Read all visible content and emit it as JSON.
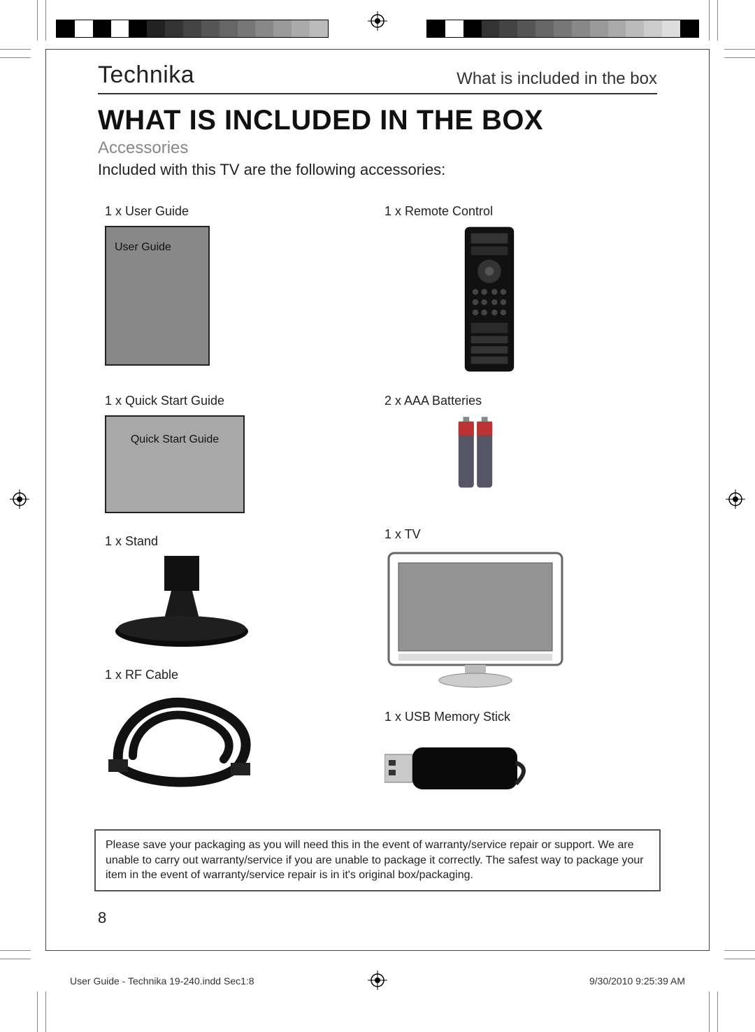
{
  "meta": {
    "brand": "Technika",
    "header_right": "What is included in the box",
    "title": "WHAT IS INCLUDED IN THE BOX",
    "subtitle": "Accessories",
    "intro": "Included with this TV are the following accessories:",
    "page_number": "8",
    "footer_file": "User Guide - Technika 19-240.indd   Sec1:8",
    "footer_timestamp": "9/30/2010   9:25:39 AM"
  },
  "items_left": [
    {
      "label": "1 x User Guide",
      "kind": "user_guide",
      "caption": "User Guide"
    },
    {
      "label": "1 x Quick Start Guide",
      "kind": "qsg",
      "caption": "Quick Start Guide"
    },
    {
      "label": "1 x Stand",
      "kind": "stand"
    },
    {
      "label": "1 x RF Cable",
      "kind": "cable"
    }
  ],
  "items_right": [
    {
      "label": "1 x Remote Control",
      "kind": "remote"
    },
    {
      "label": "2 x AAA Batteries",
      "kind": "batteries"
    },
    {
      "label": "1 x TV",
      "kind": "tv"
    },
    {
      "label": "1 x USB Memory Stick",
      "kind": "usb"
    }
  ],
  "notice": "Please save your packaging as you will need this in the event of warranty/service repair or support. We are unable to carry out warranty/service if you are unable to package it correctly. The safest way to package your item in the event of warranty/service repair is in it's original box/packaging.",
  "colors": {
    "page_bg": "#ffffff",
    "text": "#1a1a1a",
    "muted": "#888888",
    "rule": "#333333",
    "frame": "#444444",
    "booklet_fill": "#888888",
    "qsg_fill": "#a8a8a8",
    "remote_body": "#1a1a1a",
    "battery_red": "#b33",
    "battery_blue": "#556",
    "usb_body": "#0a0a0a"
  },
  "color_bars": {
    "left": [
      "#000",
      "#fff",
      "#000",
      "#fff",
      "#000",
      "#222",
      "#333",
      "#444",
      "#555",
      "#666",
      "#777",
      "#888",
      "#999",
      "#aaa",
      "#bbb"
    ],
    "right": [
      "#000",
      "#fff",
      "#000",
      "#333",
      "#444",
      "#555",
      "#666",
      "#777",
      "#888",
      "#999",
      "#aaa",
      "#bbb",
      "#ccc",
      "#ddd",
      "#000"
    ]
  },
  "typography": {
    "brand_size": 34,
    "header_right_size": 24,
    "title_size": 40,
    "subtitle_size": 24,
    "intro_size": 22,
    "item_label_size": 18,
    "notice_size": 16,
    "page_num_size": 22,
    "footer_size": 14
  }
}
